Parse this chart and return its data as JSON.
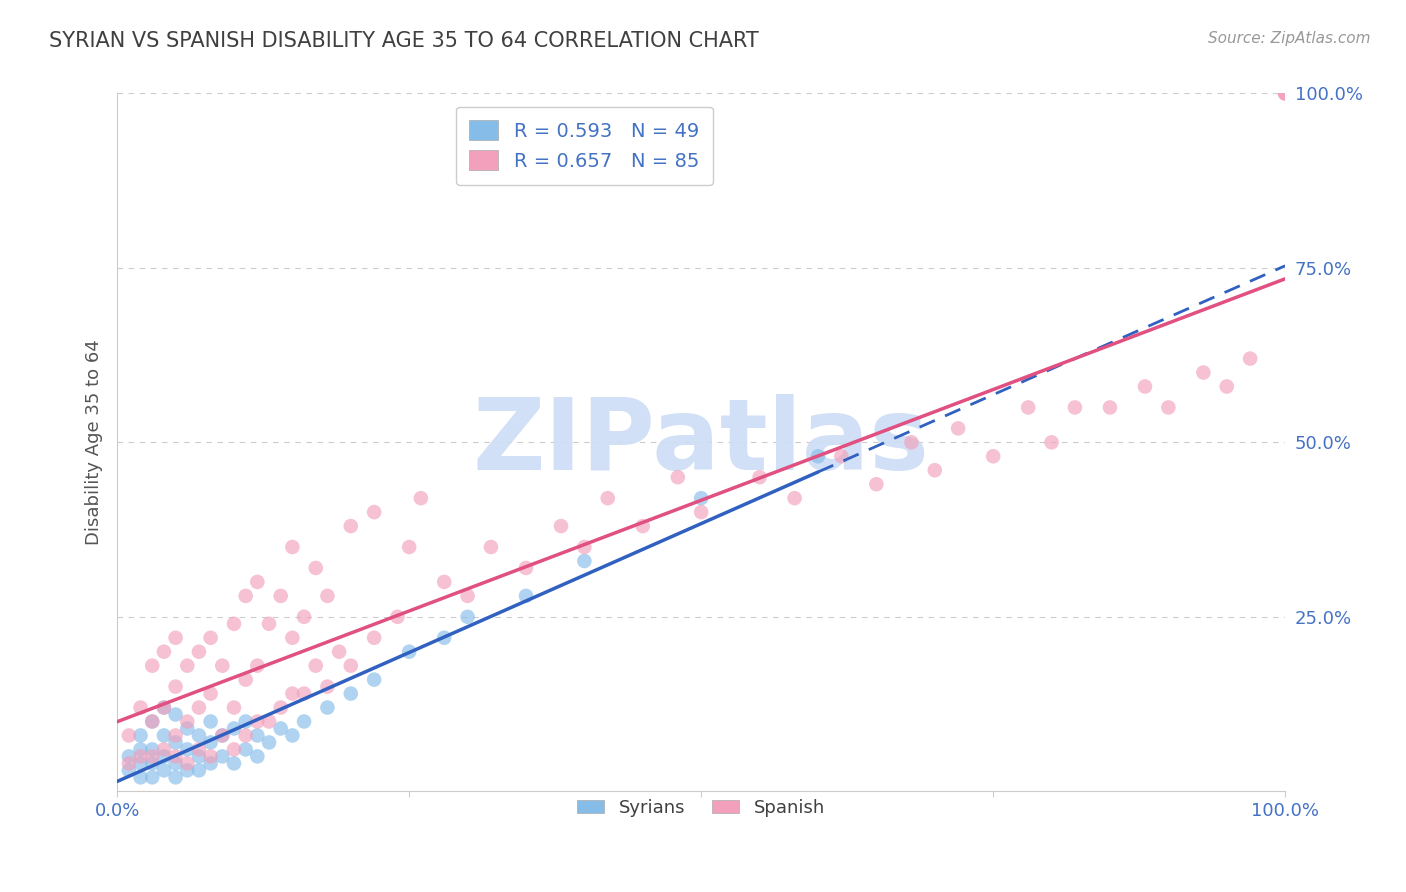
{
  "title": "SYRIAN VS SPANISH DISABILITY AGE 35 TO 64 CORRELATION CHART",
  "source_text": "Source: ZipAtlas.com",
  "ylabel": "Disability Age 35 to 64",
  "xlim": [
    0.0,
    1.0
  ],
  "ylim": [
    0.0,
    1.0
  ],
  "legend_r_syrian": "R = 0.593",
  "legend_n_syrian": "N = 49",
  "legend_r_spanish": "R = 0.657",
  "legend_n_spanish": "N = 85",
  "syrian_color": "#85bce8",
  "spanish_color": "#f2a0bb",
  "syrian_line_color": "#3060c0",
  "spanish_line_color": "#e05080",
  "watermark": "ZIPatlas",
  "watermark_color": "#ccddf5",
  "legend_labels": [
    "Syrians",
    "Spanish"
  ],
  "grid_color": "#cccccc",
  "title_color": "#404040",
  "axis_label_color": "#555555",
  "tick_label_color": "#4472c4",
  "syrian_scatter_x": [
    0.01,
    0.01,
    0.02,
    0.02,
    0.02,
    0.02,
    0.03,
    0.03,
    0.03,
    0.03,
    0.04,
    0.04,
    0.04,
    0.04,
    0.05,
    0.05,
    0.05,
    0.05,
    0.06,
    0.06,
    0.06,
    0.07,
    0.07,
    0.07,
    0.08,
    0.08,
    0.08,
    0.09,
    0.09,
    0.1,
    0.1,
    0.11,
    0.11,
    0.12,
    0.12,
    0.13,
    0.14,
    0.15,
    0.16,
    0.18,
    0.2,
    0.22,
    0.25,
    0.28,
    0.3,
    0.35,
    0.4,
    0.5,
    0.6
  ],
  "syrian_scatter_y": [
    0.03,
    0.05,
    0.02,
    0.04,
    0.06,
    0.08,
    0.02,
    0.04,
    0.06,
    0.1,
    0.03,
    0.05,
    0.08,
    0.12,
    0.02,
    0.04,
    0.07,
    0.11,
    0.03,
    0.06,
    0.09,
    0.03,
    0.05,
    0.08,
    0.04,
    0.07,
    0.1,
    0.05,
    0.08,
    0.04,
    0.09,
    0.06,
    0.1,
    0.05,
    0.08,
    0.07,
    0.09,
    0.08,
    0.1,
    0.12,
    0.14,
    0.16,
    0.2,
    0.22,
    0.25,
    0.28,
    0.33,
    0.42,
    0.48
  ],
  "spanish_scatter_x": [
    0.01,
    0.01,
    0.02,
    0.02,
    0.03,
    0.03,
    0.03,
    0.04,
    0.04,
    0.04,
    0.05,
    0.05,
    0.05,
    0.05,
    0.06,
    0.06,
    0.06,
    0.07,
    0.07,
    0.07,
    0.08,
    0.08,
    0.08,
    0.09,
    0.09,
    0.1,
    0.1,
    0.1,
    0.11,
    0.11,
    0.11,
    0.12,
    0.12,
    0.12,
    0.13,
    0.13,
    0.14,
    0.14,
    0.15,
    0.15,
    0.15,
    0.16,
    0.16,
    0.17,
    0.17,
    0.18,
    0.18,
    0.19,
    0.2,
    0.2,
    0.22,
    0.22,
    0.24,
    0.25,
    0.26,
    0.28,
    0.3,
    0.32,
    0.35,
    0.38,
    0.4,
    0.42,
    0.45,
    0.48,
    0.5,
    0.55,
    0.58,
    0.62,
    0.65,
    0.68,
    0.7,
    0.72,
    0.75,
    0.78,
    0.8,
    0.82,
    0.85,
    0.88,
    0.9,
    0.93,
    0.95,
    0.97,
    1.0,
    1.0,
    1.0
  ],
  "spanish_scatter_y": [
    0.04,
    0.08,
    0.05,
    0.12,
    0.05,
    0.1,
    0.18,
    0.06,
    0.12,
    0.2,
    0.05,
    0.08,
    0.15,
    0.22,
    0.04,
    0.1,
    0.18,
    0.06,
    0.12,
    0.2,
    0.05,
    0.14,
    0.22,
    0.08,
    0.18,
    0.06,
    0.12,
    0.24,
    0.08,
    0.16,
    0.28,
    0.1,
    0.18,
    0.3,
    0.1,
    0.24,
    0.12,
    0.28,
    0.14,
    0.22,
    0.35,
    0.14,
    0.25,
    0.18,
    0.32,
    0.15,
    0.28,
    0.2,
    0.18,
    0.38,
    0.22,
    0.4,
    0.25,
    0.35,
    0.42,
    0.3,
    0.28,
    0.35,
    0.32,
    0.38,
    0.35,
    0.42,
    0.38,
    0.45,
    0.4,
    0.45,
    0.42,
    0.48,
    0.44,
    0.5,
    0.46,
    0.52,
    0.48,
    0.55,
    0.5,
    0.55,
    0.55,
    0.58,
    0.55,
    0.6,
    0.58,
    0.62,
    1.0,
    1.0,
    1.0
  ]
}
